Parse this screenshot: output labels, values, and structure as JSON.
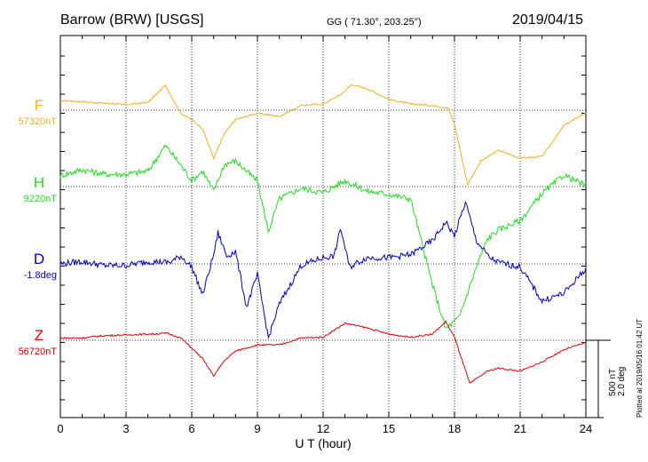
{
  "header": {
    "station": "Barrow (BRW)  [USGS]",
    "coords": "GG ( 71.30°, 203.25°)",
    "date": "2019/04/15"
  },
  "footer": {
    "plotted": "Plotted at 2019/05/16 01:42 UT"
  },
  "scale": {
    "nt": "500 nT",
    "deg": "2.0 deg"
  },
  "chart_data": {
    "type": "line",
    "xlabel": "U T (hour)",
    "xlim": [
      0,
      24
    ],
    "xticks": [
      "0",
      "3",
      "6",
      "9",
      "12",
      "15",
      "18",
      "21",
      "24"
    ],
    "grid": true,
    "series": [
      {
        "name": "F",
        "baseline_label": "57320nT",
        "color": "#f0b020",
        "points": [
          [
            0,
            62
          ],
          [
            1,
            55
          ],
          [
            2,
            45
          ],
          [
            3,
            35
          ],
          [
            4,
            50
          ],
          [
            4.8,
            160
          ],
          [
            5.5,
            -20
          ],
          [
            6,
            -60
          ],
          [
            6.5,
            -120
          ],
          [
            7,
            -310
          ],
          [
            7.5,
            -150
          ],
          [
            8,
            -60
          ],
          [
            9,
            -20
          ],
          [
            10,
            -40
          ],
          [
            11,
            30
          ],
          [
            12,
            40
          ],
          [
            12.8,
            100
          ],
          [
            13.3,
            165
          ],
          [
            14,
            140
          ],
          [
            15,
            70
          ],
          [
            16,
            40
          ],
          [
            17,
            30
          ],
          [
            17.7,
            15
          ],
          [
            18,
            -90
          ],
          [
            18.6,
            -480
          ],
          [
            19.2,
            -330
          ],
          [
            20,
            -260
          ],
          [
            21,
            -310
          ],
          [
            22,
            -300
          ],
          [
            23,
            -100
          ],
          [
            24,
            -15
          ]
        ]
      },
      {
        "name": "H",
        "baseline_label": "9220nT",
        "color": "#22dd22",
        "points": [
          [
            0,
            72
          ],
          [
            1,
            110
          ],
          [
            2,
            80
          ],
          [
            3,
            80
          ],
          [
            4,
            100
          ],
          [
            4.8,
            265
          ],
          [
            5.5,
            140
          ],
          [
            6,
            40
          ],
          [
            6.5,
            100
          ],
          [
            7,
            -30
          ],
          [
            7.5,
            145
          ],
          [
            8,
            165
          ],
          [
            8.5,
            100
          ],
          [
            9,
            35
          ],
          [
            9.5,
            -290
          ],
          [
            10,
            -80
          ],
          [
            11,
            -10
          ],
          [
            12,
            -40
          ],
          [
            13,
            40
          ],
          [
            14,
            -30
          ],
          [
            15,
            -50
          ],
          [
            16,
            -80
          ],
          [
            17,
            -640
          ],
          [
            17.6,
            -920
          ],
          [
            18.2,
            -850
          ],
          [
            19,
            -520
          ],
          [
            19.5,
            -340
          ],
          [
            20,
            -280
          ],
          [
            21,
            -220
          ],
          [
            22,
            -45
          ],
          [
            23,
            75
          ],
          [
            24,
            5
          ]
        ]
      },
      {
        "name": "D",
        "baseline_label": "-1.8deg",
        "color": "#0000cc",
        "points": [
          [
            0,
            0
          ],
          [
            1,
            15
          ],
          [
            2,
            -10
          ],
          [
            3,
            -10
          ],
          [
            4,
            15
          ],
          [
            5,
            10
          ],
          [
            5.5,
            50
          ],
          [
            6,
            -20
          ],
          [
            6.5,
            -200
          ],
          [
            7,
            60
          ],
          [
            7.2,
            200
          ],
          [
            7.6,
            50
          ],
          [
            8,
            80
          ],
          [
            8.5,
            -280
          ],
          [
            9,
            -70
          ],
          [
            9.5,
            -480
          ],
          [
            10,
            -260
          ],
          [
            11,
            -10
          ],
          [
            12,
            40
          ],
          [
            12.5,
            50
          ],
          [
            12.8,
            230
          ],
          [
            13.2,
            -20
          ],
          [
            14,
            40
          ],
          [
            15,
            40
          ],
          [
            16,
            60
          ],
          [
            17,
            150
          ],
          [
            17.6,
            270
          ],
          [
            18,
            180
          ],
          [
            18.5,
            400
          ],
          [
            19,
            150
          ],
          [
            19.6,
            40
          ],
          [
            20,
            10
          ],
          [
            21,
            -20
          ],
          [
            22,
            -240
          ],
          [
            23,
            -190
          ],
          [
            24,
            -30
          ]
        ]
      },
      {
        "name": "Z",
        "baseline_label": "56720nT",
        "color": "#dd0000",
        "points": [
          [
            0,
            15
          ],
          [
            1,
            15
          ],
          [
            2,
            30
          ],
          [
            3,
            35
          ],
          [
            4,
            40
          ],
          [
            4.9,
            45
          ],
          [
            5.5,
            15
          ],
          [
            6,
            -50
          ],
          [
            6.5,
            -120
          ],
          [
            7,
            -230
          ],
          [
            7.5,
            -130
          ],
          [
            8,
            -70
          ],
          [
            9,
            -30
          ],
          [
            10,
            -30
          ],
          [
            11,
            15
          ],
          [
            12,
            20
          ],
          [
            13,
            110
          ],
          [
            14,
            80
          ],
          [
            15,
            40
          ],
          [
            16,
            20
          ],
          [
            17,
            40
          ],
          [
            17.6,
            120
          ],
          [
            18,
            20
          ],
          [
            18.7,
            -280
          ],
          [
            19.5,
            -200
          ],
          [
            20,
            -180
          ],
          [
            21,
            -200
          ],
          [
            22,
            -140
          ],
          [
            23,
            -60
          ],
          [
            24,
            -15
          ]
        ]
      }
    ]
  }
}
